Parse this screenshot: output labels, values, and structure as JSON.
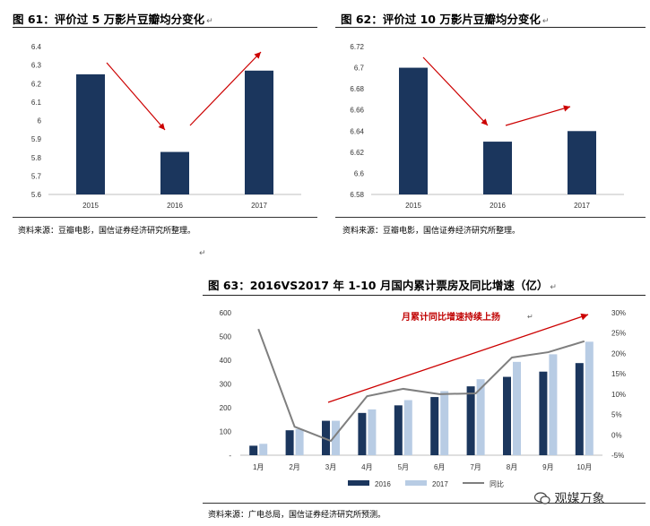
{
  "colors": {
    "bar2015": "#1b365d",
    "bar2016": "#1b365d",
    "bar2017": "#b8cce4",
    "arrow": "#cc0000",
    "line": "#7f7f7f",
    "trend_text": "#c00000"
  },
  "figures": {
    "fig61": {
      "title": "图 61：评价过 5 万影片豆瓣均分变化",
      "source": "资料来源：豆瓣电影，国信证券经济研究所整理。"
    },
    "fig62": {
      "title": "图 62：评价过 10 万影片豆瓣均分变化",
      "source": "资料来源：豆瓣电影，国信证券经济研究所整理。"
    },
    "fig63": {
      "title": "图 63：2016VS2017 年 1-10 月国内累计票房及同比增速（亿）",
      "source": "资料来源：广电总局，国信证券经济研究所预测。",
      "annotation": "月累计同比增速持续上扬"
    }
  },
  "paragraph_mark": "↵",
  "watermark": "观媒万象",
  "chart_data": [
    {
      "id": "fig61",
      "type": "bar",
      "title": "评价过 5 万影片豆瓣均分变化",
      "categories": [
        "2015",
        "2016",
        "2017"
      ],
      "values": [
        6.25,
        5.83,
        6.27
      ],
      "ylim": [
        5.6,
        6.4
      ],
      "yticks": [
        "5.6",
        "5.7",
        "5.8",
        "5.9",
        "6",
        "6.1",
        "6.2",
        "6.3",
        "6.4"
      ],
      "xlabel": "",
      "ylabel": ""
    },
    {
      "id": "fig62",
      "type": "bar",
      "title": "评价过 10 万影片豆瓣均分变化",
      "categories": [
        "2015",
        "2016",
        "2017"
      ],
      "values": [
        6.7,
        6.63,
        6.64
      ],
      "ylim": [
        6.58,
        6.72
      ],
      "yticks": [
        "6.58",
        "6.6",
        "6.62",
        "6.64",
        "6.66",
        "6.68",
        "6.7",
        "6.72"
      ],
      "xlabel": "",
      "ylabel": ""
    },
    {
      "id": "fig63",
      "type": "bar+line",
      "title": "2016VS2017 年 1-10 月国内累计票房及同比增速（亿）",
      "categories": [
        "1月",
        "2月",
        "3月",
        "4月",
        "5月",
        "6月",
        "7月",
        "8月",
        "9月",
        "10月"
      ],
      "series": [
        {
          "name": "2016",
          "axis": "left",
          "values": [
            40,
            105,
            145,
            178,
            210,
            245,
            290,
            330,
            352,
            388
          ]
        },
        {
          "name": "2017",
          "axis": "left",
          "values": [
            48,
            110,
            145,
            193,
            232,
            270,
            320,
            393,
            425,
            478
          ]
        },
        {
          "name": "同比",
          "axis": "right",
          "type": "line",
          "values": [
            26,
            2,
            -1.5,
            9.5,
            11.3,
            10,
            10.2,
            19,
            20.3,
            23
          ]
        }
      ],
      "ylim": [
        0,
        600
      ],
      "yticks": [
        "-",
        "100",
        "200",
        "300",
        "400",
        "500",
        "600"
      ],
      "y2lim": [
        -5,
        30
      ],
      "y2ticks": [
        "-5%",
        "0%",
        "5%",
        "10%",
        "15%",
        "20%",
        "25%",
        "30%"
      ],
      "legend": "bottom"
    }
  ]
}
